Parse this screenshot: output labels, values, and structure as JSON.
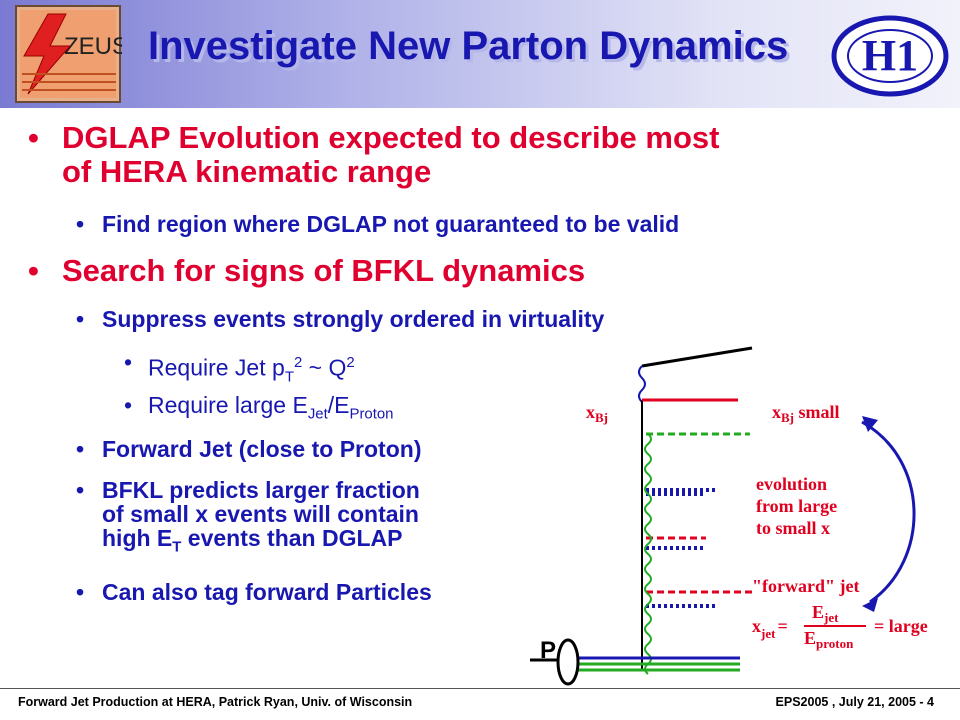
{
  "slide": {
    "title": "Investigate New Parton Dynamics",
    "logos": {
      "left": "ZEUS",
      "right": "H1"
    },
    "bullets": [
      {
        "text": "DGLAP Evolution expected to describe most",
        "cont": "of HERA kinematic range"
      },
      {
        "text": "Find region where DGLAP not guaranteed to be valid"
      },
      {
        "text": "Search for signs of BFKL dynamics"
      },
      {
        "text": "Suppress events strongly ordered in virtuality"
      },
      {
        "text": "Forward Jet (close to Proton)"
      },
      {
        "text": "BFKL predicts larger fraction",
        "cont1": "of small x events will contain",
        "cont2_pre": "high E",
        "cont2_sub": "T",
        "cont2_post": " events than DGLAP"
      },
      {
        "text": "Can also tag forward Particles"
      }
    ],
    "sub_bullets": {
      "jet_pt": {
        "pre": "Require Jet p",
        "sub": "T",
        "sup": "2",
        "mid": " ~ Q",
        "sup2": "2"
      },
      "ejet": {
        "pre": "Require large E",
        "sub": "Jet",
        "mid": "/E",
        "sub2": "Proton"
      }
    },
    "bullet_char": "•",
    "diagram": {
      "xbj": "x",
      "xbj_sub": "Bj",
      "xbj_small": "x",
      "xbj_small_sub": "Bj",
      "xbj_small_rest": " small",
      "evolution": [
        "evolution",
        "from large",
        "to small x"
      ],
      "forward_jet": "\"forward\" jet",
      "xjet": "x",
      "xjet_sub": "jet",
      "eq": "=",
      "ejet_num": "E",
      "ejet_num_sub": "jet",
      "eproton": "E",
      "eproton_sub": "proton",
      "equals_large": "= large",
      "proton": "P"
    },
    "footer": {
      "left": "Forward Jet Production at HERA, Patrick Ryan, Univ. of Wisconsin",
      "right": "EPS2005 , July 21, 2005 - 4"
    },
    "colors": {
      "title": "#1818b0",
      "red": "#e00030",
      "blue": "#1818b0",
      "green": "#22aa22"
    }
  }
}
